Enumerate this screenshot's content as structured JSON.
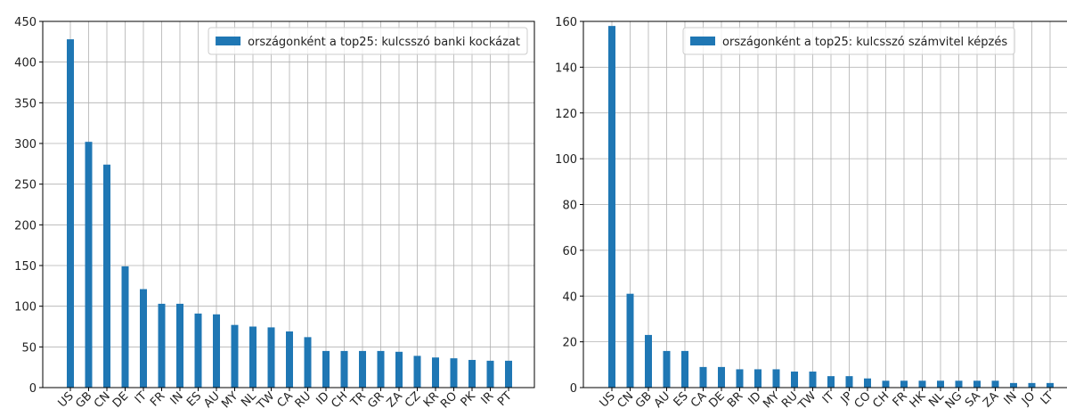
{
  "chart_data": [
    {
      "type": "bar",
      "categories": [
        "US",
        "GB",
        "CN",
        "DE",
        "IT",
        "FR",
        "IN",
        "ES",
        "AU",
        "MY",
        "NL",
        "TW",
        "CA",
        "RU",
        "ID",
        "CH",
        "TR",
        "GR",
        "ZA",
        "CZ",
        "KR",
        "RO",
        "PK",
        "IR",
        "PT"
      ],
      "series": [
        {
          "name": "országonként a top25: kulcsszó banki kockázat",
          "color": "#1f77b4",
          "values": [
            428,
            302,
            274,
            149,
            121,
            103,
            103,
            91,
            90,
            77,
            75,
            74,
            69,
            62,
            45,
            45,
            45,
            45,
            44,
            39,
            37,
            36,
            34,
            33,
            33
          ]
        }
      ],
      "ylim": [
        0,
        450
      ],
      "yticks": [
        0,
        50,
        100,
        150,
        200,
        250,
        300,
        350,
        400,
        450
      ],
      "grid": true,
      "legend": "upper right"
    },
    {
      "type": "bar",
      "categories": [
        "US",
        "CN",
        "GB",
        "AU",
        "ES",
        "CA",
        "DE",
        "BR",
        "ID",
        "MY",
        "RU",
        "TW",
        "IT",
        "JP",
        "CO",
        "CH",
        "FR",
        "HK",
        "NL",
        "NG",
        "SA",
        "ZA",
        "IN",
        "JO",
        "LT"
      ],
      "series": [
        {
          "name": "országonként a top25: kulcsszó számvitel képzés",
          "color": "#1f77b4",
          "values": [
            158,
            41,
            23,
            16,
            16,
            9,
            9,
            8,
            8,
            8,
            7,
            7,
            5,
            5,
            4,
            3,
            3,
            3,
            3,
            3,
            3,
            3,
            2,
            2,
            2
          ]
        }
      ],
      "ylim": [
        0,
        160
      ],
      "yticks": [
        0,
        20,
        40,
        60,
        80,
        100,
        120,
        140,
        160
      ],
      "grid": true,
      "legend": "upper right"
    }
  ]
}
